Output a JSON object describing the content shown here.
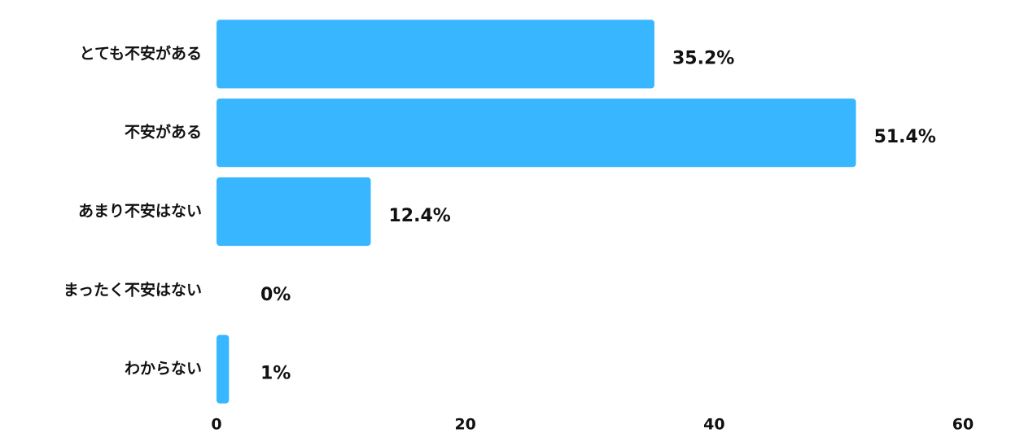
{
  "chart_data": {
    "type": "bar",
    "orientation": "horizontal",
    "categories": [
      "とても不安がある",
      "不安がある",
      "あまり不安はない",
      "まったく不安はない",
      "わからない"
    ],
    "values": [
      35.2,
      51.4,
      12.4,
      0,
      1
    ],
    "value_labels": [
      "35.2%",
      "51.4%",
      "12.4%",
      "0%",
      "1%"
    ],
    "color": "#38b6ff",
    "xlim": [
      0,
      60
    ],
    "xticks": [
      0,
      20,
      40,
      60
    ],
    "grid": false
  }
}
